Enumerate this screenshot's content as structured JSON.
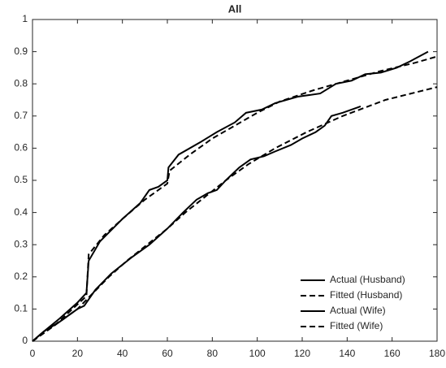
{
  "chart_data": {
    "type": "line",
    "title": "All",
    "xlim": [
      0,
      180
    ],
    "xticks": [
      0,
      20,
      40,
      60,
      80,
      100,
      120,
      140,
      160,
      180
    ],
    "ylim": [
      0,
      1
    ],
    "yticks": [
      0,
      0.1,
      0.2,
      0.3,
      0.4,
      0.5,
      0.6,
      0.7,
      0.8,
      0.9,
      1
    ],
    "legend": "lower right",
    "series": [
      {
        "name": "Actual (Husband)",
        "color": "#000000",
        "dash": "solid",
        "x": [
          0,
          5,
          12,
          20,
          24,
          25,
          30,
          40,
          48,
          52,
          56,
          60,
          60.5,
          65,
          75,
          82,
          90,
          95,
          102,
          108,
          118,
          128,
          135,
          142,
          148,
          155,
          162,
          168,
          176
        ],
        "values": [
          0,
          0.03,
          0.07,
          0.12,
          0.15,
          0.25,
          0.31,
          0.38,
          0.43,
          0.47,
          0.48,
          0.5,
          0.54,
          0.58,
          0.62,
          0.65,
          0.68,
          0.71,
          0.72,
          0.74,
          0.76,
          0.77,
          0.8,
          0.81,
          0.83,
          0.835,
          0.85,
          0.87,
          0.9
        ]
      },
      {
        "name": "Fitted (Husband)",
        "color": "#000000",
        "dash": "dashed",
        "x": [
          0,
          10,
          24,
          25,
          32,
          40,
          50,
          60,
          61,
          70,
          80,
          90,
          100,
          110,
          125,
          140,
          155,
          170,
          180
        ],
        "values": [
          0,
          0.05,
          0.14,
          0.27,
          0.33,
          0.38,
          0.44,
          0.49,
          0.53,
          0.58,
          0.63,
          0.67,
          0.71,
          0.745,
          0.78,
          0.81,
          0.84,
          0.865,
          0.885
        ]
      },
      {
        "name": "Actual (Wife)",
        "color": "#000000",
        "dash": "solid",
        "x": [
          0,
          5,
          12,
          20,
          23,
          28,
          35,
          44,
          52,
          60,
          67,
          73,
          78,
          82,
          86,
          92,
          97,
          103,
          108,
          115,
          120,
          126,
          130,
          133,
          138,
          146
        ],
        "values": [
          0,
          0.03,
          0.06,
          0.1,
          0.11,
          0.16,
          0.21,
          0.26,
          0.3,
          0.35,
          0.4,
          0.44,
          0.46,
          0.47,
          0.5,
          0.54,
          0.565,
          0.575,
          0.59,
          0.61,
          0.63,
          0.65,
          0.67,
          0.7,
          0.71,
          0.73
        ]
      },
      {
        "name": "Fitted (Wife)",
        "color": "#000000",
        "dash": "dashed",
        "x": [
          0,
          10,
          20,
          27,
          34,
          42,
          51,
          60,
          68,
          77,
          86,
          96,
          108,
          122,
          138,
          157,
          180
        ],
        "values": [
          0,
          0.05,
          0.1,
          0.15,
          0.2,
          0.25,
          0.3,
          0.35,
          0.4,
          0.45,
          0.5,
          0.55,
          0.6,
          0.65,
          0.7,
          0.75,
          0.79
        ]
      }
    ]
  }
}
